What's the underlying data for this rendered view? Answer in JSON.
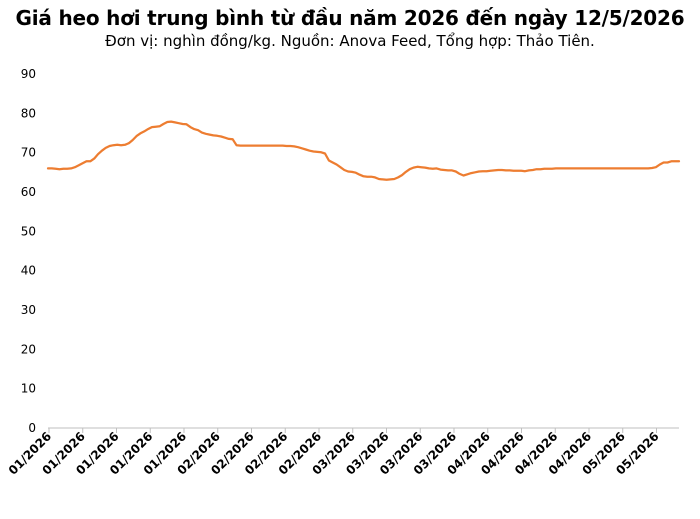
{
  "title": "Giá heo hơi trung bình từ đầu năm 2026 đến ngày 12/5/2026",
  "subtitle": "Đơn vị: nghìn đồng/kg. Nguồn: Anova Feed, Tổng hợp: Thảo Tiên.",
  "colors": {
    "line": "#ED7D31",
    "axis": "#BFBFBF"
  },
  "chart_data": {
    "type": "line",
    "ylim": [
      0,
      90
    ],
    "yticks": [
      0,
      10,
      20,
      30,
      40,
      50,
      60,
      70,
      80,
      90
    ],
    "grid": false,
    "xtick_labels": [
      "01/2026",
      "01/2026",
      "01/2026",
      "01/2026",
      "01/2026",
      "02/2026",
      "02/2026",
      "02/2026",
      "02/2026",
      "03/2026",
      "03/2026",
      "03/2026",
      "03/2026",
      "04/2026",
      "04/2026",
      "04/2026",
      "04/2026",
      "05/2026",
      "05/2026"
    ],
    "values": [
      66.0,
      66.0,
      65.9,
      65.8,
      65.9,
      65.9,
      66.0,
      66.3,
      66.8,
      67.3,
      67.8,
      67.8,
      68.5,
      69.6,
      70.5,
      71.2,
      71.7,
      71.9,
      72.0,
      71.9,
      72.0,
      72.4,
      73.2,
      74.2,
      74.9,
      75.4,
      76.0,
      76.5,
      76.6,
      76.7,
      77.3,
      77.8,
      77.9,
      77.7,
      77.5,
      77.3,
      77.2,
      76.5,
      76.0,
      75.7,
      75.1,
      74.8,
      74.6,
      74.4,
      74.3,
      74.1,
      73.8,
      73.5,
      73.4,
      71.9,
      71.8,
      71.8,
      71.8,
      71.8,
      71.8,
      71.8,
      71.8,
      71.8,
      71.8,
      71.8,
      71.8,
      71.8,
      71.7,
      71.7,
      71.6,
      71.4,
      71.1,
      70.8,
      70.5,
      70.3,
      70.2,
      70.1,
      69.8,
      68.0,
      67.5,
      67.0,
      66.3,
      65.6,
      65.2,
      65.1,
      64.9,
      64.4,
      64.0,
      63.9,
      63.9,
      63.7,
      63.3,
      63.2,
      63.1,
      63.2,
      63.3,
      63.7,
      64.3,
      65.1,
      65.8,
      66.2,
      66.4,
      66.3,
      66.2,
      66.0,
      65.9,
      66.0,
      65.7,
      65.6,
      65.5,
      65.5,
      65.2,
      64.6,
      64.2,
      64.5,
      64.8,
      65.0,
      65.2,
      65.3,
      65.3,
      65.4,
      65.5,
      65.6,
      65.6,
      65.5,
      65.5,
      65.4,
      65.4,
      65.4,
      65.3,
      65.5,
      65.6,
      65.8,
      65.8,
      65.9,
      65.9,
      65.9,
      66.0,
      66.0,
      66.0,
      66.0,
      66.0,
      66.0,
      66.0,
      66.0,
      66.0,
      66.0,
      66.0,
      66.0,
      66.0,
      66.0,
      66.0,
      66.0,
      66.0,
      66.0,
      66.0,
      66.0,
      66.0,
      66.0,
      66.0,
      66.0,
      66.0,
      66.1,
      66.3,
      67.0,
      67.5,
      67.5,
      67.8,
      67.8,
      67.8
    ]
  }
}
